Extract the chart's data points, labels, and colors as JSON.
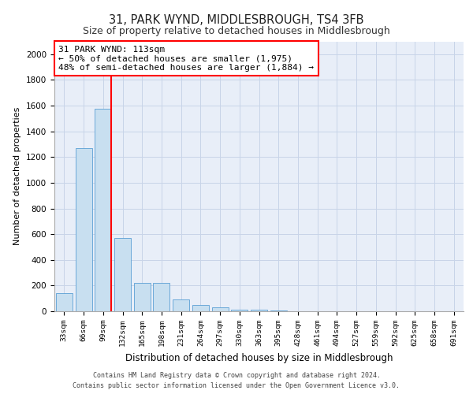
{
  "title1": "31, PARK WYND, MIDDLESBROUGH, TS4 3FB",
  "title2": "Size of property relative to detached houses in Middlesbrough",
  "xlabel": "Distribution of detached houses by size in Middlesbrough",
  "ylabel": "Number of detached properties",
  "bar_labels": [
    "33sqm",
    "66sqm",
    "99sqm",
    "132sqm",
    "165sqm",
    "198sqm",
    "231sqm",
    "264sqm",
    "297sqm",
    "330sqm",
    "363sqm",
    "395sqm",
    "428sqm",
    "461sqm",
    "494sqm",
    "527sqm",
    "559sqm",
    "592sqm",
    "625sqm",
    "658sqm",
    "691sqm"
  ],
  "bar_values": [
    140,
    1270,
    1575,
    570,
    220,
    220,
    95,
    50,
    30,
    15,
    10,
    5,
    2,
    1,
    1,
    0,
    0,
    0,
    0,
    0,
    0
  ],
  "bar_color": "#c8dff0",
  "bar_edge_color": "#5a9fd4",
  "grid_color": "#c8d4e8",
  "bg_color": "#e8eef8",
  "annotation_text": "31 PARK WYND: 113sqm\n← 50% of detached houses are smaller (1,975)\n48% of semi-detached houses are larger (1,884) →",
  "ylim": [
    0,
    2100
  ],
  "yticks": [
    0,
    200,
    400,
    600,
    800,
    1000,
    1200,
    1400,
    1600,
    1800,
    2000
  ],
  "footer1": "Contains HM Land Registry data © Crown copyright and database right 2024.",
  "footer2": "Contains public sector information licensed under the Open Government Licence v3.0."
}
